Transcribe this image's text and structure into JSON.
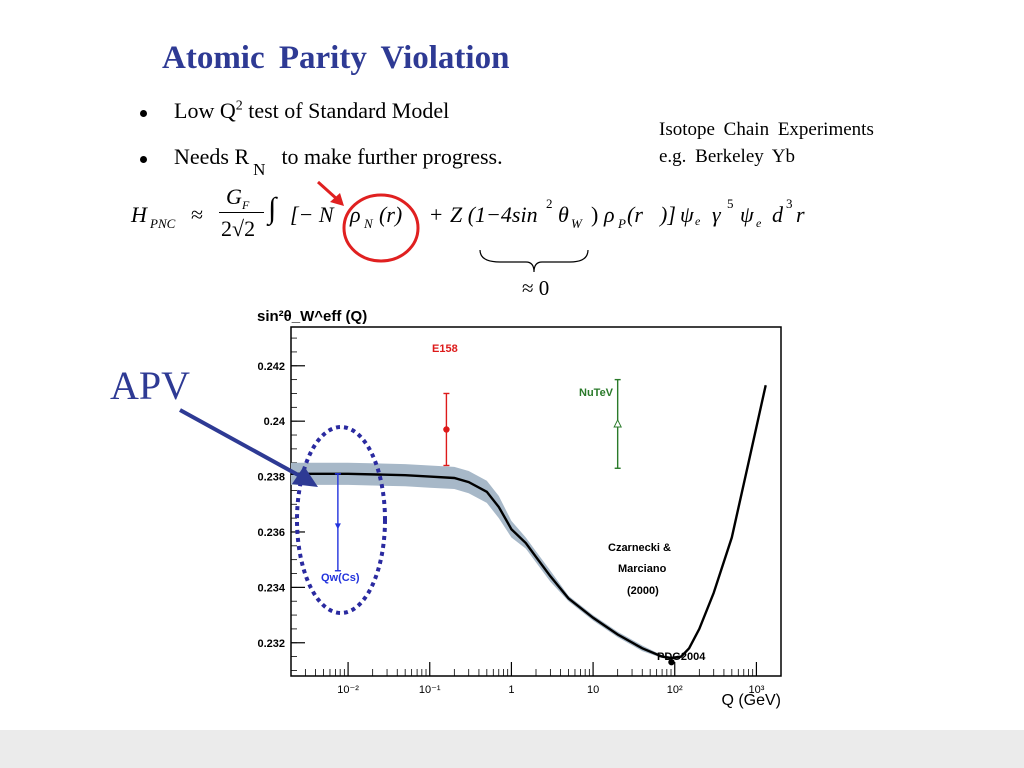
{
  "slide": {
    "title": "Atomic   Parity  Violation",
    "bullets": [
      {
        "pre": "Low  Q",
        "sup": "2",
        "post": "  test  of   Standard   Model"
      },
      {
        "pre": "Needs    R",
        "sub": "N",
        "post": "to make further  progress."
      }
    ],
    "side_note": [
      "Isotope  Chain  Experiments",
      "e.g.   Berkeley   Yb"
    ],
    "apv_label": "APV",
    "equation": {
      "lhs": "H",
      "lhs_sub": "PNC",
      "approx": "≈",
      "frac_num": "G",
      "frac_num_sub": "F",
      "frac_den": "2√2",
      "integral": "∫",
      "term1": "[− N",
      "rho_n": "ρ",
      "rho_n_sub": "N",
      "arg1": "(r)",
      "plus": "+",
      "term2": "Z (1−4sin",
      "sin_sup": "2",
      "theta": "θ",
      "theta_sub": "W",
      "close_paren": ")",
      "rho_p": "ρ",
      "rho_p_sub": "P",
      "arg2": "(r⃗)]",
      "psi_tail": "ψ",
      "psi_sub": "e",
      "gamma": "γ",
      "gamma_sup": "5",
      "psi2": "ψ",
      "psi2_sub": "e",
      "d3r": "d",
      "d3r_sup": "3",
      "r": "r",
      "brace_label": "≈ 0"
    }
  },
  "chart_data": {
    "type": "line",
    "title": "",
    "ylabel": "sin²θ_W^eff (Q)",
    "xlabel": "Q (GeV)",
    "x_scale": "log",
    "xlim": [
      0.002,
      2000
    ],
    "ylim": [
      0.2308,
      0.2434
    ],
    "y_ticks": [
      "0.232",
      "0.234",
      "0.236",
      "0.238",
      "0.24",
      "0.242"
    ],
    "x_ticks": [
      "10⁻²",
      "10⁻¹",
      "1",
      "10",
      "10²",
      "10³"
    ],
    "running_curve": {
      "name": "Czarnecki & Marciano (2000)",
      "x": [
        0.002,
        0.01,
        0.05,
        0.1,
        0.2,
        0.3,
        0.5,
        0.7,
        1,
        1.5,
        2,
        3,
        5,
        10,
        20,
        40,
        70,
        91.2,
        120,
        150,
        200,
        300,
        500,
        800,
        1300
      ],
      "y": [
        0.2381,
        0.2381,
        0.23805,
        0.238,
        0.23795,
        0.2378,
        0.23745,
        0.2369,
        0.2361,
        0.2356,
        0.2351,
        0.2344,
        0.2336,
        0.2329,
        0.2323,
        0.2318,
        0.2315,
        0.23145,
        0.2315,
        0.2318,
        0.2325,
        0.2338,
        0.2358,
        0.2385,
        0.2413
      ],
      "band_halfwidth": [
        0.0004,
        0.0004,
        0.0004,
        0.0004,
        0.0004,
        0.0004,
        0.0004,
        0.0004,
        0.0003,
        0.0002,
        0.0002,
        0.0002,
        0.0001,
        0.0001,
        0.0001,
        0.0001,
        5e-05,
        5e-05,
        5e-05,
        5e-05,
        5e-05,
        5e-05,
        5e-05,
        5e-05,
        5e-05
      ]
    },
    "measurements": [
      {
        "name": "Qw(Cs)",
        "x": 0.0075,
        "y": 0.2362,
        "err_low": 0.0016,
        "err_high": 0.0019,
        "color": "#2233dd",
        "marker": "triangle-down"
      },
      {
        "name": "E158",
        "x": 0.16,
        "y": 0.2397,
        "err_low": 0.0013,
        "err_high": 0.0013,
        "color": "#dd1a1a",
        "marker": "circle"
      },
      {
        "name": "NuTeV",
        "x": 20,
        "y": 0.2399,
        "err_low": 0.0016,
        "err_high": 0.0016,
        "color": "#2a7a2a",
        "marker": "triangle-up"
      },
      {
        "name": "PDG2004",
        "x": 91.2,
        "y": 0.2313,
        "err_low": 0,
        "err_high": 0,
        "color": "#000000",
        "marker": "circle"
      }
    ],
    "annotations": [
      "Czarnecki &",
      "Marciano",
      "(2000)"
    ],
    "colors": {
      "curve": "#000000",
      "band": "#a7b8c8",
      "highlight": "#2a2aa0",
      "arrow": "#2e3a94",
      "red_arrow": "#e02020"
    }
  }
}
